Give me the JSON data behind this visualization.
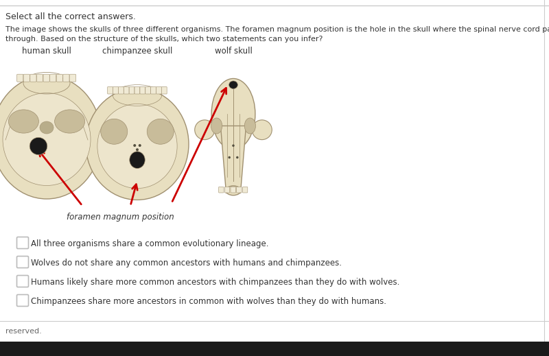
{
  "background_color": "#ffffff",
  "header_text": "Select all the correct answers.",
  "body_line1": "The image shows the skulls of three different organisms. The foramen magnum position is the hole in the skull where the spinal nerve cord passes",
  "body_line2": "through. Based on the structure of the skulls, which two statements can you infer?",
  "skull_labels": [
    "human skull",
    "chimpanzee skull",
    "wolf skull"
  ],
  "annotation_label": "foramen magnum position",
  "choices": [
    "All three organisms share a common evolutionary lineage.",
    "Wolves do not share any common ancestors with humans and chimpanzees.",
    "Humans likely share more common ancestors with chimpanzees than they do with wolves.",
    "Chimpanzees share more ancestors in common with wolves than they do with humans."
  ],
  "footer_text": "reserved.",
  "text_color": "#333333",
  "arrow_color": "#cc0000",
  "checkbox_color": "#bbbbbb",
  "border_color": "#cccccc",
  "skull_color": "#e8dfc0",
  "skull_edge": "#a09070",
  "skull_dark": "#555040",
  "fm_color": "#222222",
  "taskbar_color": "#1a1a1a",
  "fig_width": 8.0,
  "fig_height": 5.19,
  "dpi": 100
}
